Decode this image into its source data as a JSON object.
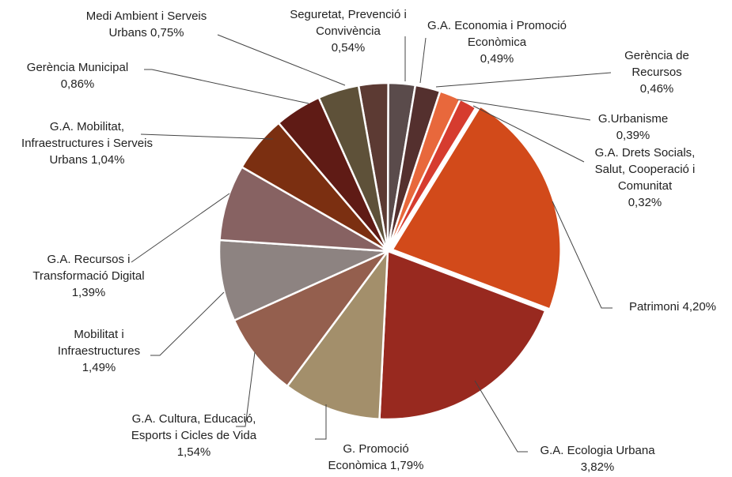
{
  "chart_data": {
    "type": "pie",
    "categories": [
      "Seguretat, Prevenció i Convivència",
      "G.A. Economia i Promoció Econòmica",
      "Gerència de Recursos",
      "G.Urbanisme",
      "G.A. Drets Socials, Salut, Cooperació i Comunitat",
      "Patrimoni",
      "G.A. Ecologia Urbana",
      "G. Promoció Econòmica",
      "G.A. Cultura, Educació, Esports i Cicles de Vida",
      "Mobilitat i Infraestructures",
      "G.A. Recursos i Transformació Digital",
      "G.A. Mobilitat, Infraestructures i Serveis Urbans",
      "Gerència Municipal",
      "Medi Ambient i Serveis Urbans"
    ],
    "values": [
      0.54,
      0.49,
      0.46,
      0.39,
      0.32,
      4.2,
      3.82,
      1.79,
      1.54,
      1.49,
      1.39,
      1.04,
      0.86,
      0.75
    ],
    "value_labels": [
      "0,54%",
      "0,49%",
      "0,46%",
      "0,39%",
      "0,32%",
      "4,20%",
      "3,82%",
      "1,79%",
      "1,54%",
      "1,49%",
      "1,39%",
      "1,04%",
      "0,86%",
      "0,75%"
    ],
    "colors": [
      "#5c3a33",
      "#5a4b4b",
      "#54302e",
      "#e8683c",
      "#d63c2f",
      "#d24a1a",
      "#98291f",
      "#a38f6b",
      "#945f4e",
      "#8d8381",
      "#876262",
      "#7b2f11",
      "#5f1b15",
      "#5e5139"
    ]
  }
}
